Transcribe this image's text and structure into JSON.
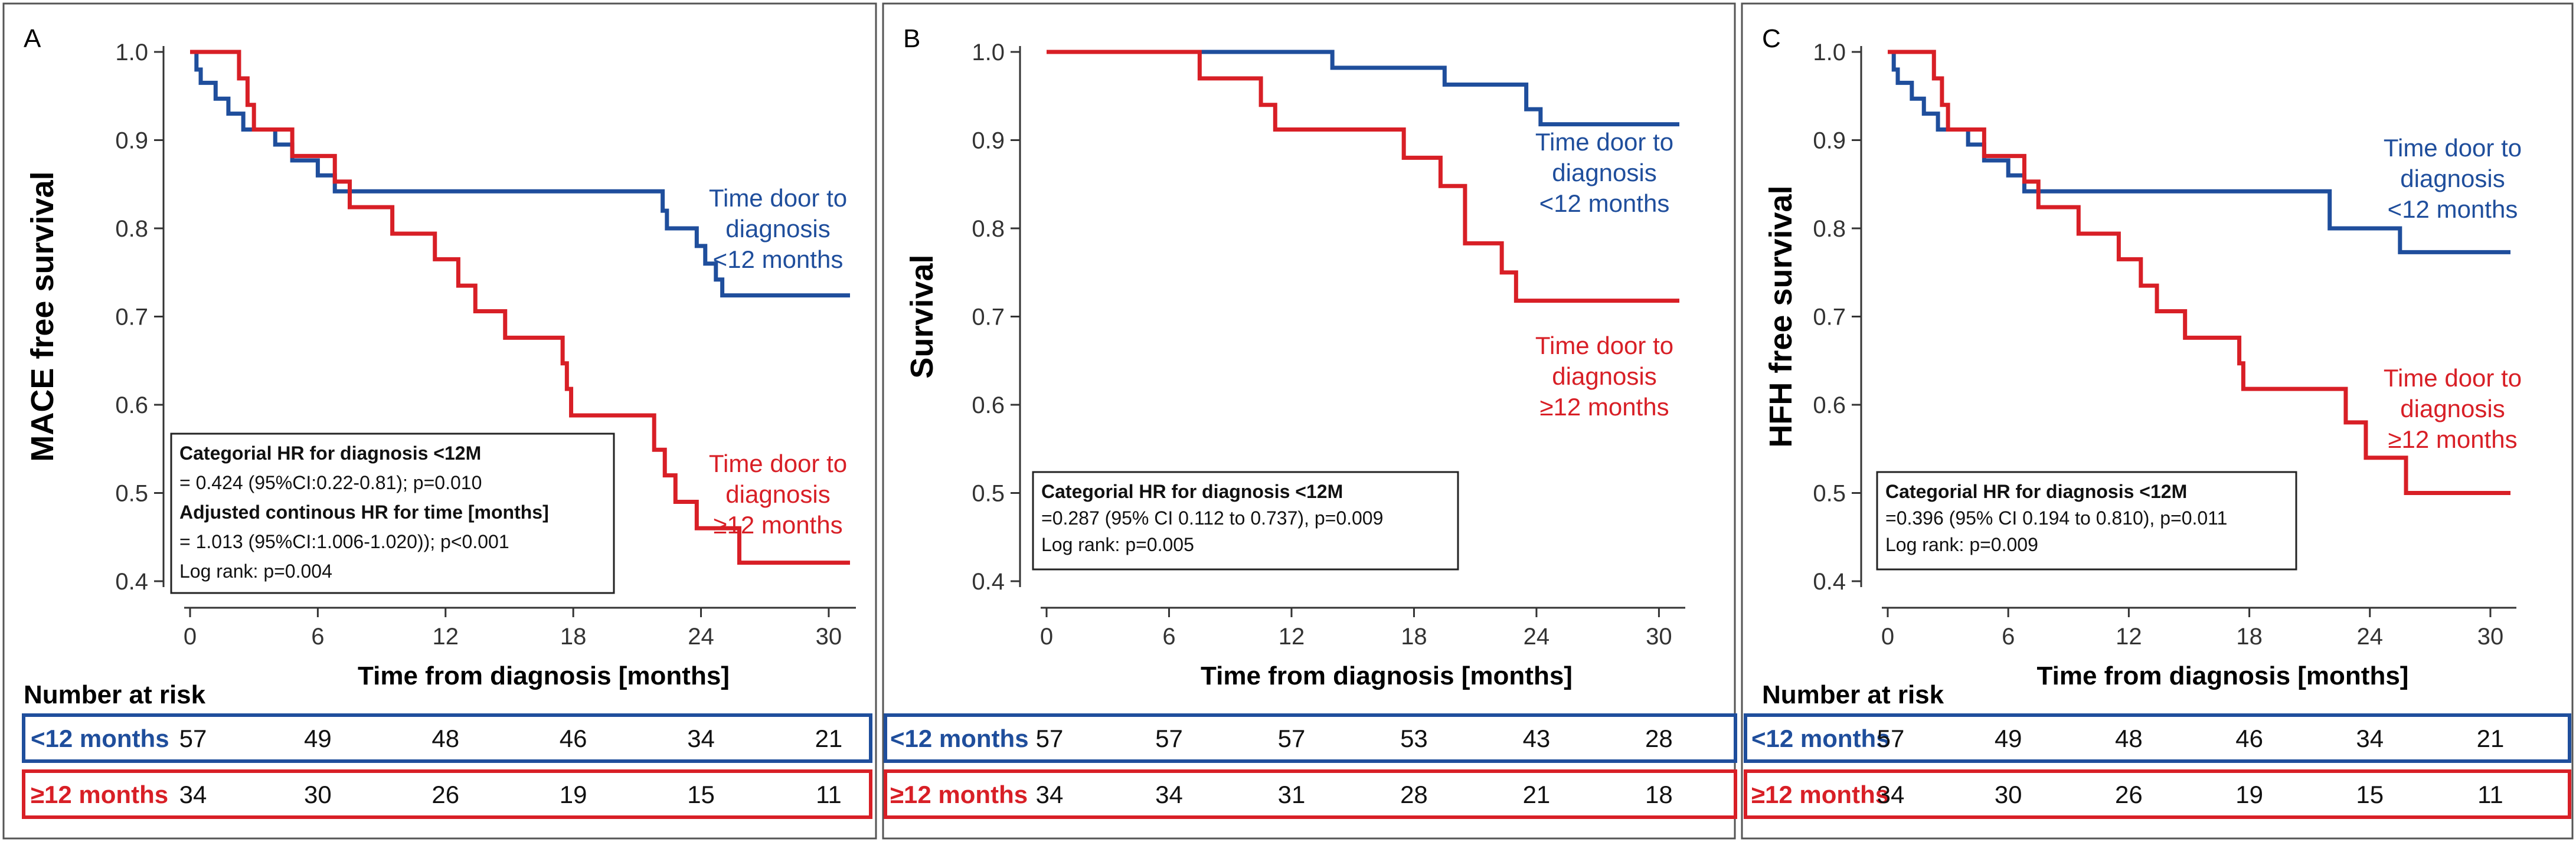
{
  "colors": {
    "blue": "#1f4e9c",
    "red": "#d81f26",
    "axis": "#333333",
    "border": "#555555"
  },
  "chart_data": [
    {
      "type": "line",
      "panel_letter": "A",
      "ylabel": "MACE free survival",
      "xlabel": "Time from diagnosis [months]",
      "xlim": [
        0,
        31
      ],
      "ylim": [
        0.4,
        1.0
      ],
      "xticks": [
        0,
        6,
        12,
        18,
        24,
        30
      ],
      "yticks": [
        0.4,
        0.5,
        0.6,
        0.7,
        0.8,
        0.9,
        1.0
      ],
      "tick_labels_y": [
        "0.4",
        "0.5",
        "0.6",
        "0.7",
        "0.8",
        "0.9",
        "1.0"
      ],
      "tick_labels_x": [
        "0",
        "6",
        "12",
        "18",
        "24",
        "30"
      ],
      "series": [
        {
          "label_lines": [
            "Time door to",
            "diagnosis",
            "<12 months"
          ],
          "color": "blue",
          "points": [
            [
              0,
              1.0
            ],
            [
              0.3,
              0.98
            ],
            [
              0.5,
              0.965
            ],
            [
              1.2,
              0.947
            ],
            [
              1.8,
              0.93
            ],
            [
              2.5,
              0.912
            ],
            [
              4.0,
              0.895
            ],
            [
              4.8,
              0.877
            ],
            [
              6.0,
              0.86
            ],
            [
              6.8,
              0.842
            ],
            [
              22.2,
              0.82
            ],
            [
              22.4,
              0.8
            ],
            [
              23.8,
              0.78
            ],
            [
              24.2,
              0.76
            ],
            [
              24.7,
              0.742
            ],
            [
              25.0,
              0.724
            ],
            [
              31.0,
              0.724
            ]
          ]
        },
        {
          "label_lines": [
            "Time door to",
            "diagnosis",
            "≥12 months"
          ],
          "color": "red",
          "points": [
            [
              0,
              1.0
            ],
            [
              2.3,
              0.97
            ],
            [
              2.7,
              0.94
            ],
            [
              3.0,
              0.912
            ],
            [
              4.8,
              0.882
            ],
            [
              6.8,
              0.853
            ],
            [
              7.5,
              0.824
            ],
            [
              9.5,
              0.794
            ],
            [
              11.5,
              0.765
            ],
            [
              12.6,
              0.735
            ],
            [
              13.4,
              0.706
            ],
            [
              14.8,
              0.676
            ],
            [
              17.5,
              0.647
            ],
            [
              17.7,
              0.618
            ],
            [
              17.9,
              0.588
            ],
            [
              21.8,
              0.549
            ],
            [
              22.3,
              0.52
            ],
            [
              22.8,
              0.49
            ],
            [
              23.8,
              0.46
            ],
            [
              25.8,
              0.421
            ],
            [
              31.0,
              0.421
            ]
          ]
        }
      ],
      "annotation": [
        {
          "text": "Categorial HR for diagnosis <12M",
          "bold": true
        },
        {
          "text": "= 0.424 (95%CI:0.22-0.81); p=0.010",
          "bold": false
        },
        {
          "text": "Adjusted continous HR for time [months]",
          "bold": true
        },
        {
          "text": "= 1.013 (95%CI:1.006-1.020)); p<0.001",
          "bold": false
        },
        {
          "text": "Log rank: p=0.004",
          "bold": false
        }
      ],
      "risk": {
        "title": "Number at risk",
        "rows": [
          {
            "label": "<12 months",
            "color": "blue",
            "values": [
              "57",
              "49",
              "48",
              "46",
              "34",
              "21"
            ]
          },
          {
            "label": "≥12 months",
            "color": "red",
            "values": [
              "34",
              "30",
              "26",
              "19",
              "15",
              "11"
            ]
          }
        ]
      }
    },
    {
      "type": "line",
      "panel_letter": "B",
      "ylabel": "Survival",
      "xlabel": "Time from diagnosis [months]",
      "xlim": [
        0,
        31
      ],
      "ylim": [
        0.4,
        1.0
      ],
      "xticks": [
        0,
        6,
        12,
        18,
        24,
        30
      ],
      "yticks": [
        0.4,
        0.5,
        0.6,
        0.7,
        0.8,
        0.9,
        1.0
      ],
      "tick_labels_y": [
        "0.4",
        "0.5",
        "0.6",
        "0.7",
        "0.8",
        "0.9",
        "1.0"
      ],
      "tick_labels_x": [
        "0",
        "6",
        "12",
        "18",
        "24",
        "30"
      ],
      "series": [
        {
          "label_lines": [
            "Time door to",
            "diagnosis",
            "<12 months"
          ],
          "color": "blue",
          "points": [
            [
              0,
              1.0
            ],
            [
              14.0,
              0.982
            ],
            [
              19.5,
              0.963
            ],
            [
              23.5,
              0.935
            ],
            [
              24.2,
              0.918
            ],
            [
              31.0,
              0.918
            ]
          ]
        },
        {
          "label_lines": [
            "Time door to",
            "diagnosis",
            "≥12 months"
          ],
          "color": "red",
          "points": [
            [
              0,
              1.0
            ],
            [
              7.5,
              0.97
            ],
            [
              10.5,
              0.94
            ],
            [
              11.2,
              0.912
            ],
            [
              17.5,
              0.88
            ],
            [
              19.3,
              0.848
            ],
            [
              20.5,
              0.783
            ],
            [
              22.3,
              0.75
            ],
            [
              23.0,
              0.718
            ],
            [
              31.0,
              0.718
            ]
          ]
        }
      ],
      "annotation": [
        {
          "text": "Categorial HR for diagnosis <12M",
          "bold": true
        },
        {
          "text": "=0.287 (95% CI 0.112 to 0.737), p=0.009",
          "bold": false
        },
        {
          "text": "Log rank: p=0.005",
          "bold": false
        }
      ],
      "risk": {
        "title": "",
        "rows": [
          {
            "label": "<12 months",
            "color": "blue",
            "values": [
              "57",
              "57",
              "57",
              "53",
              "43",
              "28"
            ]
          },
          {
            "label": "≥12 months",
            "color": "red",
            "values": [
              "34",
              "34",
              "31",
              "28",
              "21",
              "18"
            ]
          }
        ]
      }
    },
    {
      "type": "line",
      "panel_letter": "C",
      "ylabel": "HFH free survival",
      "xlabel": "Time from diagnosis [months]",
      "xlim": [
        0,
        31
      ],
      "ylim": [
        0.4,
        1.0
      ],
      "xticks": [
        0,
        6,
        12,
        18,
        24,
        30
      ],
      "yticks": [
        0.4,
        0.5,
        0.6,
        0.7,
        0.8,
        0.9,
        1.0
      ],
      "tick_labels_y": [
        "0.4",
        "0.5",
        "0.6",
        "0.7",
        "0.8",
        "0.9",
        "1.0"
      ],
      "tick_labels_x": [
        "0",
        "6",
        "12",
        "18",
        "24",
        "30"
      ],
      "series": [
        {
          "label_lines": [
            "Time door to",
            "diagnosis",
            "<12 months"
          ],
          "color": "blue",
          "points": [
            [
              0,
              1.0
            ],
            [
              0.3,
              0.98
            ],
            [
              0.5,
              0.965
            ],
            [
              1.2,
              0.947
            ],
            [
              1.8,
              0.93
            ],
            [
              2.5,
              0.912
            ],
            [
              4.0,
              0.895
            ],
            [
              4.8,
              0.877
            ],
            [
              6.0,
              0.86
            ],
            [
              6.8,
              0.842
            ],
            [
              22.0,
              0.8
            ],
            [
              25.5,
              0.773
            ],
            [
              31.0,
              0.773
            ]
          ]
        },
        {
          "label_lines": [
            "Time door to",
            "diagnosis",
            "≥12 months"
          ],
          "color": "red",
          "points": [
            [
              0,
              1.0
            ],
            [
              2.3,
              0.97
            ],
            [
              2.7,
              0.94
            ],
            [
              3.0,
              0.912
            ],
            [
              4.8,
              0.882
            ],
            [
              6.8,
              0.853
            ],
            [
              7.5,
              0.824
            ],
            [
              9.5,
              0.794
            ],
            [
              11.5,
              0.765
            ],
            [
              12.6,
              0.735
            ],
            [
              13.4,
              0.706
            ],
            [
              14.8,
              0.676
            ],
            [
              17.5,
              0.647
            ],
            [
              17.7,
              0.618
            ],
            [
              22.8,
              0.58
            ],
            [
              23.8,
              0.54
            ],
            [
              25.8,
              0.5
            ],
            [
              31.0,
              0.5
            ]
          ]
        }
      ],
      "annotation": [
        {
          "text": "Categorial HR for diagnosis <12M",
          "bold": true
        },
        {
          "text": "=0.396 (95% CI 0.194 to 0.810), p=0.011",
          "bold": false
        },
        {
          "text": "Log rank: p=0.009",
          "bold": false
        }
      ],
      "risk": {
        "title": "Number at risk",
        "rows": [
          {
            "label": "<12 months",
            "color": "blue",
            "values": [
              "57",
              "49",
              "48",
              "46",
              "34",
              "21"
            ]
          },
          {
            "label": "≥12 months",
            "color": "red",
            "values": [
              "34",
              "30",
              "26",
              "19",
              "15",
              "11"
            ]
          }
        ]
      }
    }
  ]
}
